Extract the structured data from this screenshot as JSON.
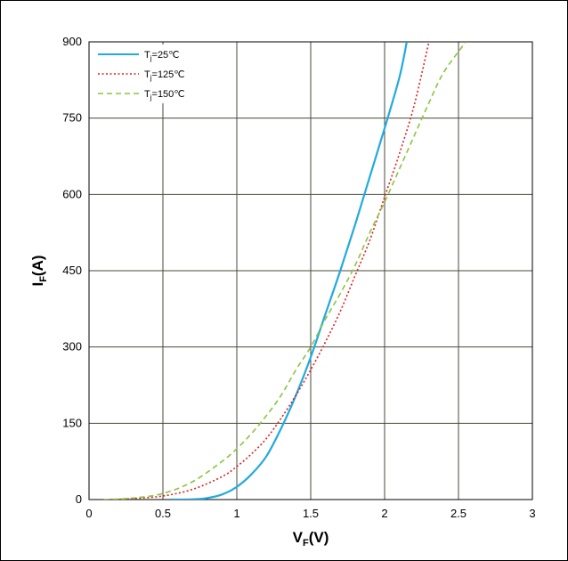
{
  "chart_data": {
    "type": "line",
    "xlabel": {
      "main": "V",
      "sub": "F",
      "unit": "(V)"
    },
    "ylabel": {
      "main": "I",
      "sub": "F",
      "unit": "(A)"
    },
    "xlim": [
      0,
      3
    ],
    "ylim": [
      0,
      900
    ],
    "xticks": [
      0,
      0.5,
      1,
      1.5,
      2,
      2.5,
      3
    ],
    "xtick_labels": [
      "0",
      "0.5",
      "1",
      "1.5",
      "2",
      "2.5",
      "3"
    ],
    "yticks": [
      0,
      150,
      300,
      450,
      600,
      750,
      900
    ],
    "ytick_labels": [
      "0",
      "150",
      "300",
      "450",
      "600",
      "750",
      "900"
    ],
    "grid": true,
    "legend_position": "top-left",
    "series": [
      {
        "name": "T_j=25℃",
        "label": {
          "main": "T",
          "sub": "j",
          "rest": "=25℃"
        },
        "color": "#22a9e1",
        "style": "solid",
        "points": [
          [
            0.55,
            0
          ],
          [
            0.7,
            0.5
          ],
          [
            0.8,
            3
          ],
          [
            0.9,
            10
          ],
          [
            1.0,
            25
          ],
          [
            1.1,
            50
          ],
          [
            1.2,
            85
          ],
          [
            1.3,
            140
          ],
          [
            1.4,
            205
          ],
          [
            1.5,
            280
          ],
          [
            1.6,
            365
          ],
          [
            1.7,
            450
          ],
          [
            1.8,
            540
          ],
          [
            1.9,
            635
          ],
          [
            2.0,
            730
          ],
          [
            2.1,
            830
          ],
          [
            2.15,
            900
          ]
        ]
      },
      {
        "name": "T_j=125℃",
        "label": {
          "main": "T",
          "sub": "j",
          "rest": "=125℃"
        },
        "color": "#e02020",
        "style": "dotted",
        "points": [
          [
            0.15,
            0
          ],
          [
            0.3,
            2
          ],
          [
            0.5,
            7
          ],
          [
            0.7,
            20
          ],
          [
            0.9,
            45
          ],
          [
            1.0,
            65
          ],
          [
            1.1,
            90
          ],
          [
            1.2,
            120
          ],
          [
            1.3,
            160
          ],
          [
            1.4,
            205
          ],
          [
            1.5,
            255
          ],
          [
            1.6,
            310
          ],
          [
            1.7,
            370
          ],
          [
            1.8,
            440
          ],
          [
            1.9,
            510
          ],
          [
            2.0,
            595
          ],
          [
            2.1,
            680
          ],
          [
            2.2,
            775
          ],
          [
            2.3,
            900
          ]
        ]
      },
      {
        "name": "T_j=150℃",
        "label": {
          "main": "T",
          "sub": "j",
          "rest": "=150℃"
        },
        "color": "#88c540",
        "style": "dashed",
        "points": [
          [
            0.1,
            0
          ],
          [
            0.3,
            3
          ],
          [
            0.5,
            12
          ],
          [
            0.7,
            35
          ],
          [
            0.9,
            75
          ],
          [
            1.0,
            100
          ],
          [
            1.1,
            130
          ],
          [
            1.2,
            165
          ],
          [
            1.3,
            205
          ],
          [
            1.4,
            255
          ],
          [
            1.5,
            300
          ],
          [
            1.6,
            355
          ],
          [
            1.7,
            405
          ],
          [
            1.8,
            460
          ],
          [
            1.9,
            525
          ],
          [
            2.0,
            585
          ],
          [
            2.1,
            650
          ],
          [
            2.2,
            715
          ],
          [
            2.3,
            780
          ],
          [
            2.4,
            840
          ],
          [
            2.55,
            900
          ]
        ]
      }
    ]
  }
}
